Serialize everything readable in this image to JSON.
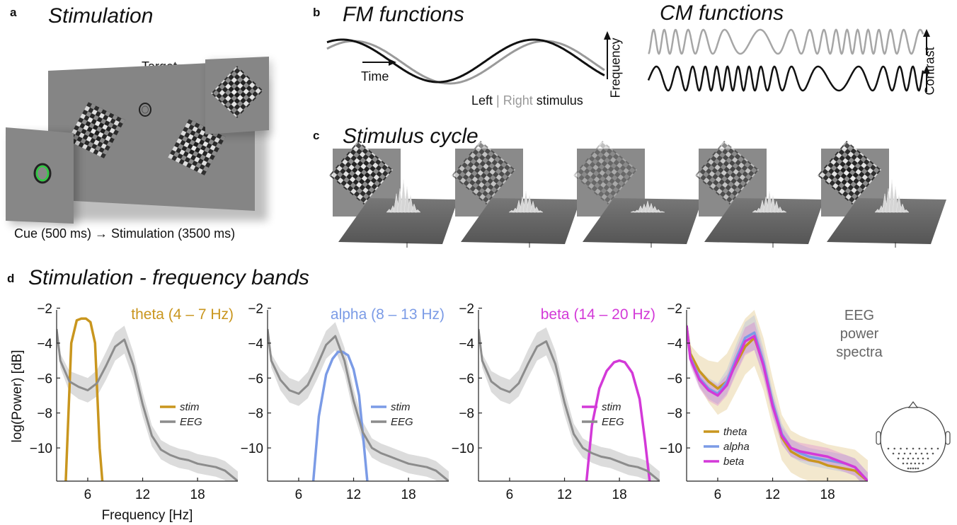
{
  "panel_a": {
    "letter": "a",
    "title": "Stimulation",
    "target_label": "Target →",
    "caption": "Cue (500 ms) → Stimulation (3500 ms)"
  },
  "panel_b": {
    "letter": "b",
    "fm_title": "FM functions",
    "cm_title": "CM functions",
    "time_label": "Time",
    "freq_label": "Frequency",
    "contrast_label": "Contrast",
    "legend_left": "Left",
    "legend_sep": " | ",
    "legend_right": "Right",
    "legend_stim": " stimulus"
  },
  "panel_c": {
    "letter": "c",
    "title": "Stimulus cycle"
  },
  "panel_d": {
    "letter": "d",
    "title": "Stimulation - frequency bands",
    "ylabel": "log(Power) [dB]",
    "xlabel": "Frequency [Hz]"
  },
  "colors": {
    "theta": "#C9961E",
    "alpha": "#7B9BE6",
    "beta": "#D339D8",
    "eeg": "#8C8C8C",
    "eeg_band": "#D8D8D8"
  },
  "chart_data": [
    {
      "type": "line",
      "title": "theta (4 – 7 Hz)",
      "xlim": [
        2.6,
        22.4
      ],
      "ylim": [
        -11.9,
        -2.1
      ],
      "xticks": [
        6,
        12,
        18
      ],
      "yticks": [
        -2,
        -4,
        -6,
        -8,
        -10
      ],
      "ytick_labels": [
        "−2",
        "−4",
        "−6",
        "−8",
        "−10"
      ],
      "legend": [
        "stim",
        "EEG"
      ],
      "series": [
        {
          "name": "stim",
          "color": "theta",
          "x": [
            3.6,
            4.2,
            4.8,
            5.3,
            5.8,
            6.3,
            6.8,
            7.3,
            7.6
          ],
          "y": [
            -11.9,
            -4,
            -2.7,
            -2.6,
            -2.6,
            -2.8,
            -4,
            -10,
            -11.9
          ]
        },
        {
          "name": "EEG",
          "color": "eeg",
          "band": true,
          "x": [
            2.6,
            3,
            4,
            5,
            6,
            7,
            8,
            9,
            10,
            11,
            12,
            13,
            14,
            15,
            16,
            17,
            18,
            19,
            20,
            21,
            22.4
          ],
          "y": [
            -3.2,
            -5.0,
            -6.2,
            -6.5,
            -6.7,
            -6.3,
            -5.3,
            -4.2,
            -3.8,
            -5.3,
            -7.5,
            -9.3,
            -10.1,
            -10.4,
            -10.6,
            -10.7,
            -10.9,
            -11.0,
            -11.1,
            -11.3,
            -11.9
          ],
          "err": [
            0.25,
            0.4,
            0.6,
            0.7,
            0.7,
            0.75,
            0.8,
            0.8,
            0.8,
            0.75,
            0.7,
            0.6,
            0.55,
            0.55,
            0.55,
            0.55,
            0.55,
            0.55,
            0.55,
            0.55,
            0.55
          ]
        }
      ]
    },
    {
      "type": "line",
      "title": "alpha (8 – 13 Hz)",
      "xlim": [
        2.6,
        22.4
      ],
      "ylim": [
        -11.9,
        -2.1
      ],
      "xticks": [
        6,
        12,
        18
      ],
      "yticks": [
        -2,
        -4,
        -6,
        -8,
        -10
      ],
      "ytick_labels": [
        "−2",
        "−4",
        "−6",
        "−8",
        "−10"
      ],
      "legend": [
        "stim",
        "EEG"
      ],
      "series": [
        {
          "name": "stim",
          "color": "alpha",
          "x": [
            7.6,
            8.2,
            9,
            9.7,
            10.3,
            10.8,
            11.4,
            12,
            12.6,
            13.1,
            13.5
          ],
          "y": [
            -11.9,
            -8.2,
            -5.8,
            -4.9,
            -4.5,
            -4.5,
            -4.7,
            -5.5,
            -7,
            -9.7,
            -11.9
          ]
        },
        {
          "name": "EEG",
          "color": "eeg",
          "band": true,
          "x": [
            2.6,
            3,
            4,
            5,
            6,
            7,
            8,
            9,
            10,
            11,
            12,
            13,
            14,
            15,
            16,
            17,
            18,
            19,
            20,
            21,
            22.4
          ],
          "y": [
            -3.2,
            -5.0,
            -6.1,
            -6.7,
            -6.9,
            -6.4,
            -5.3,
            -4.1,
            -3.6,
            -5.0,
            -7.3,
            -9.1,
            -10.0,
            -10.3,
            -10.5,
            -10.7,
            -10.9,
            -11.0,
            -11.1,
            -11.3,
            -11.9
          ],
          "err": [
            0.25,
            0.4,
            0.6,
            0.7,
            0.7,
            0.75,
            0.8,
            0.8,
            0.8,
            0.75,
            0.7,
            0.6,
            0.55,
            0.55,
            0.55,
            0.55,
            0.55,
            0.55,
            0.55,
            0.55,
            0.55
          ]
        }
      ]
    },
    {
      "type": "line",
      "title": "beta (14 – 20 Hz)",
      "xlim": [
        2.6,
        22.4
      ],
      "ylim": [
        -11.9,
        -2.1
      ],
      "xticks": [
        6,
        12,
        18
      ],
      "yticks": [
        -2,
        -4,
        -6,
        -8,
        -10
      ],
      "ytick_labels": [
        "−2",
        "−4",
        "−6",
        "−8",
        "−10"
      ],
      "legend": [
        "stim",
        "EEG"
      ],
      "series": [
        {
          "name": "stim",
          "color": "beta",
          "x": [
            14.4,
            15,
            15.8,
            16.6,
            17.4,
            18,
            18.6,
            19.4,
            20.2,
            20.8,
            21.3
          ],
          "y": [
            -11.9,
            -8.7,
            -6.6,
            -5.6,
            -5.1,
            -5.0,
            -5.1,
            -5.7,
            -7.2,
            -9.6,
            -11.9
          ]
        },
        {
          "name": "EEG",
          "color": "eeg",
          "band": true,
          "x": [
            2.6,
            3,
            4,
            5,
            6,
            7,
            8,
            9,
            10,
            11,
            12,
            13,
            14,
            15,
            16,
            17,
            18,
            19,
            20,
            21,
            22.4
          ],
          "y": [
            -3.2,
            -5.0,
            -6.2,
            -6.6,
            -6.8,
            -6.3,
            -5.2,
            -4.2,
            -3.9,
            -5.2,
            -7.4,
            -9.2,
            -10.0,
            -10.3,
            -10.5,
            -10.6,
            -10.8,
            -11.0,
            -11.1,
            -11.3,
            -11.9
          ],
          "err": [
            0.25,
            0.4,
            0.6,
            0.7,
            0.7,
            0.75,
            0.8,
            0.8,
            0.8,
            0.75,
            0.7,
            0.6,
            0.55,
            0.55,
            0.55,
            0.55,
            0.55,
            0.55,
            0.55,
            0.55,
            0.55
          ]
        }
      ]
    },
    {
      "type": "line",
      "title": "EEG power spectra",
      "xlim": [
        2.6,
        22.4
      ],
      "ylim": [
        -11.9,
        -2.1
      ],
      "xticks": [
        6,
        12,
        18
      ],
      "yticks": [
        -2,
        -4,
        -6,
        -8,
        -10
      ],
      "ytick_labels": [
        "−2",
        "−4",
        "−6",
        "−8",
        "−10"
      ],
      "legend": [
        "theta",
        "alpha",
        "beta"
      ],
      "series": [
        {
          "name": "theta",
          "color": "theta",
          "band": true,
          "x": [
            2.6,
            3,
            4,
            5,
            6,
            7,
            8,
            9,
            10,
            11,
            12,
            13,
            14,
            15,
            16,
            17,
            18,
            19,
            20,
            21,
            22.4
          ],
          "y": [
            -3,
            -4.6,
            -5.6,
            -6.2,
            -6.6,
            -6.2,
            -5.2,
            -4.2,
            -3.7,
            -5.2,
            -7.4,
            -9.4,
            -10.2,
            -10.5,
            -10.7,
            -10.8,
            -11.0,
            -11.1,
            -11.2,
            -11.3,
            -11.9
          ],
          "err": [
            0.3,
            0.5,
            0.9,
            1.2,
            1.5,
            1.6,
            1.6,
            1.6,
            1.6,
            1.5,
            1.4,
            1.3,
            1.2,
            1.2,
            1.2,
            1.2,
            1.2,
            1.2,
            1.2,
            1.2,
            1.2
          ]
        },
        {
          "name": "alpha",
          "color": "alpha",
          "band": true,
          "x": [
            2.6,
            3,
            4,
            5,
            6,
            7,
            8,
            9,
            10,
            11,
            12,
            13,
            14,
            15,
            16,
            17,
            18,
            19,
            20,
            21,
            22.4
          ],
          "y": [
            -3,
            -4.8,
            -6.0,
            -6.6,
            -6.9,
            -6.2,
            -4.9,
            -3.7,
            -3.4,
            -5.1,
            -7.4,
            -9.2,
            -10.0,
            -10.3,
            -10.5,
            -10.6,
            -10.7,
            -10.8,
            -10.9,
            -11.1,
            -11.9
          ],
          "err": [
            0.3,
            0.4,
            0.5,
            0.6,
            0.6,
            0.7,
            0.8,
            0.9,
            1.0,
            0.8,
            0.7,
            0.6,
            0.5,
            0.5,
            0.5,
            0.5,
            0.5,
            0.5,
            0.5,
            0.5,
            0.5
          ]
        },
        {
          "name": "beta",
          "color": "beta",
          "band": true,
          "x": [
            2.6,
            3,
            4,
            5,
            6,
            7,
            8,
            9,
            10,
            11,
            12,
            13,
            14,
            15,
            16,
            17,
            18,
            19,
            20,
            21,
            22.4
          ],
          "y": [
            -3,
            -4.9,
            -6.1,
            -6.7,
            -7.0,
            -6.4,
            -5.1,
            -3.9,
            -3.6,
            -5.3,
            -7.6,
            -9.3,
            -10.0,
            -10.2,
            -10.3,
            -10.4,
            -10.5,
            -10.7,
            -10.9,
            -11.1,
            -11.9
          ],
          "err": [
            0.3,
            0.4,
            0.5,
            0.6,
            0.6,
            0.6,
            0.7,
            0.8,
            0.8,
            0.7,
            0.6,
            0.5,
            0.5,
            0.5,
            0.5,
            0.5,
            0.5,
            0.5,
            0.5,
            0.5,
            0.5
          ]
        }
      ]
    }
  ]
}
